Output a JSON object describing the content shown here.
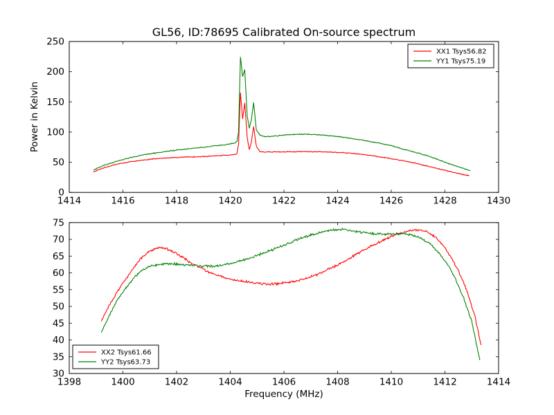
{
  "title": "GL56, ID:78695 Calibrated On-source spectrum",
  "colors": {
    "xx_line": "#ff0000",
    "yy_line": "#008000",
    "axis": "#000000",
    "background": "#ffffff"
  },
  "chart_data": [
    {
      "type": "line",
      "title": "GL56, ID:78695 Calibrated On-source spectrum",
      "ylabel": "Power in Kelvin",
      "xlim": [
        1414,
        1430
      ],
      "ylim": [
        0,
        250
      ],
      "xticks": [
        1414,
        1416,
        1418,
        1420,
        1422,
        1424,
        1426,
        1428,
        1430
      ],
      "yticks": [
        0,
        50,
        100,
        150,
        200,
        250
      ],
      "grid": false,
      "legend": {
        "position": "upper-right"
      },
      "series": [
        {
          "name": "XX1 Tsys56.82",
          "color": "#ff0000",
          "noise": 0.9,
          "points": [
            [
              1414.9,
              34
            ],
            [
              1415.3,
              41
            ],
            [
              1415.8,
              47
            ],
            [
              1416.3,
              51
            ],
            [
              1416.8,
              54
            ],
            [
              1417.3,
              56
            ],
            [
              1417.8,
              57.5
            ],
            [
              1418.3,
              58.5
            ],
            [
              1418.8,
              59
            ],
            [
              1419.3,
              60
            ],
            [
              1419.8,
              61.5
            ],
            [
              1420.1,
              62.5
            ],
            [
              1420.25,
              64
            ],
            [
              1420.31,
              80
            ],
            [
              1420.38,
              166
            ],
            [
              1420.46,
              122
            ],
            [
              1420.54,
              148
            ],
            [
              1420.63,
              92
            ],
            [
              1420.71,
              71
            ],
            [
              1420.79,
              84
            ],
            [
              1420.87,
              109
            ],
            [
              1420.97,
              77
            ],
            [
              1421.1,
              68
            ],
            [
              1421.3,
              67
            ],
            [
              1421.7,
              67
            ],
            [
              1422.1,
              67.3
            ],
            [
              1422.5,
              67.5
            ],
            [
              1422.9,
              67.5
            ],
            [
              1423.3,
              67.3
            ],
            [
              1423.7,
              67
            ],
            [
              1424.1,
              66.3
            ],
            [
              1424.5,
              65
            ],
            [
              1425,
              62.5
            ],
            [
              1425.5,
              59.5
            ],
            [
              1426,
              56
            ],
            [
              1426.5,
              52
            ],
            [
              1427,
              47.5
            ],
            [
              1427.4,
              43
            ],
            [
              1428,
              36.5
            ],
            [
              1428.5,
              31.5
            ],
            [
              1428.9,
              27.5
            ]
          ]
        },
        {
          "name": "YY1 Tsys75.19",
          "color": "#008000",
          "noise": 0.9,
          "points": [
            [
              1414.9,
              37
            ],
            [
              1415.3,
              45
            ],
            [
              1415.8,
              52
            ],
            [
              1416.3,
              58
            ],
            [
              1416.8,
              62.5
            ],
            [
              1417.3,
              66
            ],
            [
              1417.8,
              69
            ],
            [
              1418.3,
              71.5
            ],
            [
              1418.8,
              74
            ],
            [
              1419.3,
              76.5
            ],
            [
              1419.8,
              79
            ],
            [
              1420.1,
              81
            ],
            [
              1420.25,
              84
            ],
            [
              1420.31,
              100
            ],
            [
              1420.38,
              225
            ],
            [
              1420.46,
              192
            ],
            [
              1420.54,
              203
            ],
            [
              1420.63,
              128
            ],
            [
              1420.71,
              106
            ],
            [
              1420.79,
              121
            ],
            [
              1420.87,
              149
            ],
            [
              1420.97,
              104
            ],
            [
              1421.1,
              95
            ],
            [
              1421.3,
              92.5
            ],
            [
              1421.7,
              93.5
            ],
            [
              1422.1,
              95.5
            ],
            [
              1422.5,
              96.5
            ],
            [
              1422.9,
              96.5
            ],
            [
              1423.3,
              95.5
            ],
            [
              1423.7,
              94
            ],
            [
              1424.1,
              92
            ],
            [
              1424.5,
              89.5
            ],
            [
              1425,
              86
            ],
            [
              1425.5,
              82
            ],
            [
              1426,
              77.5
            ],
            [
              1426.5,
              71
            ],
            [
              1426.9,
              66.5
            ],
            [
              1427.4,
              60
            ],
            [
              1428,
              50
            ],
            [
              1428.5,
              42.5
            ],
            [
              1428.95,
              36
            ]
          ]
        }
      ]
    },
    {
      "type": "line",
      "xlabel": "Frequency (MHz)",
      "xlim": [
        1398,
        1414
      ],
      "ylim": [
        30,
        75
      ],
      "xticks": [
        1398,
        1400,
        1402,
        1404,
        1406,
        1408,
        1410,
        1412,
        1414
      ],
      "yticks": [
        30,
        35,
        40,
        45,
        50,
        55,
        60,
        65,
        70,
        75
      ],
      "grid": false,
      "legend": {
        "position": "lower-left"
      },
      "series": [
        {
          "name": "XX2 Tsys61.66",
          "color": "#ff0000",
          "noise": 0.42,
          "points": [
            [
              1399.2,
              45.8
            ],
            [
              1399.5,
              50.5
            ],
            [
              1399.8,
              54.5
            ],
            [
              1400.1,
              58
            ],
            [
              1400.4,
              61.5
            ],
            [
              1400.7,
              64.5
            ],
            [
              1401,
              66.5
            ],
            [
              1401.3,
              67.5
            ],
            [
              1401.6,
              67.2
            ],
            [
              1401.9,
              66.2
            ],
            [
              1402.2,
              64.8
            ],
            [
              1402.5,
              63.2
            ],
            [
              1402.8,
              61.9
            ],
            [
              1403.1,
              60.6
            ],
            [
              1403.5,
              59.3
            ],
            [
              1404,
              58.2
            ],
            [
              1404.5,
              57.4
            ],
            [
              1405,
              56.9
            ],
            [
              1405.4,
              56.7
            ],
            [
              1405.8,
              56.8
            ],
            [
              1406.2,
              57.2
            ],
            [
              1406.6,
              57.9
            ],
            [
              1407,
              58.8
            ],
            [
              1407.4,
              60.1
            ],
            [
              1407.8,
              61.6
            ],
            [
              1408.2,
              63.3
            ],
            [
              1408.6,
              65.1
            ],
            [
              1409,
              66.9
            ],
            [
              1409.4,
              68.6
            ],
            [
              1409.8,
              70.1
            ],
            [
              1410.2,
              71.5
            ],
            [
              1410.6,
              72.4
            ],
            [
              1411,
              72.9
            ],
            [
              1411.3,
              72.4
            ],
            [
              1411.6,
              70.9
            ],
            [
              1411.9,
              68.6
            ],
            [
              1412.2,
              65.1
            ],
            [
              1412.5,
              60.6
            ],
            [
              1412.8,
              55.1
            ],
            [
              1413.1,
              47.6
            ],
            [
              1413.35,
              38.5
            ]
          ]
        },
        {
          "name": "YY2 Tsys63.73",
          "color": "#008000",
          "noise": 0.42,
          "points": [
            [
              1399.2,
              42.3
            ],
            [
              1399.5,
              47.5
            ],
            [
              1399.8,
              52
            ],
            [
              1400.1,
              55.5
            ],
            [
              1400.4,
              58.5
            ],
            [
              1400.7,
              60.6
            ],
            [
              1401,
              61.9
            ],
            [
              1401.3,
              62.5
            ],
            [
              1401.6,
              62.7
            ],
            [
              1401.9,
              62.7
            ],
            [
              1402.2,
              62.5
            ],
            [
              1402.5,
              62.3
            ],
            [
              1402.8,
              62.1
            ],
            [
              1403.1,
              62
            ],
            [
              1403.4,
              62
            ],
            [
              1403.7,
              62.3
            ],
            [
              1404,
              62.8
            ],
            [
              1404.4,
              63.6
            ],
            [
              1404.8,
              64.6
            ],
            [
              1405.2,
              65.8
            ],
            [
              1405.6,
              67
            ],
            [
              1406,
              68.3
            ],
            [
              1406.4,
              69.6
            ],
            [
              1406.8,
              70.8
            ],
            [
              1407.2,
              71.8
            ],
            [
              1407.6,
              72.5
            ],
            [
              1408,
              73
            ],
            [
              1408.3,
              72.9
            ],
            [
              1408.6,
              72.5
            ],
            [
              1409,
              72
            ],
            [
              1409.4,
              71.7
            ],
            [
              1409.8,
              71.5
            ],
            [
              1410.2,
              71.7
            ],
            [
              1410.6,
              71.5
            ],
            [
              1410.9,
              71
            ],
            [
              1411.2,
              70
            ],
            [
              1411.5,
              68.3
            ],
            [
              1411.8,
              65.8
            ],
            [
              1412.1,
              62.5
            ],
            [
              1412.4,
              58
            ],
            [
              1412.7,
              52.5
            ],
            [
              1413,
              45.5
            ],
            [
              1413.3,
              34
            ]
          ]
        }
      ]
    }
  ]
}
